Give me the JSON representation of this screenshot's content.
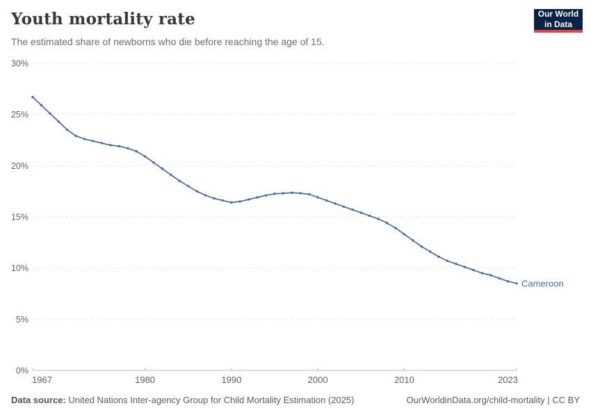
{
  "header": {
    "title": "Youth mortality rate",
    "subtitle": "The estimated share of newborns who die before reaching the age of 15."
  },
  "logo": {
    "line1": "Our World",
    "line2": "in Data",
    "bg_color": "#0a2248",
    "accent_color": "#e8433a"
  },
  "chart_data": {
    "type": "line",
    "title": "Youth mortality rate",
    "entity_label": "Cameroon",
    "line_color": "#4C6A9C",
    "grid": "horizontal-dashed",
    "legend_position": "end-of-line",
    "xlim": [
      1967,
      2023
    ],
    "ylim": [
      0,
      30
    ],
    "x_ticks": [
      1967,
      1980,
      1990,
      2000,
      2010,
      2023
    ],
    "y_ticks": [
      0,
      5,
      10,
      15,
      20,
      25,
      30
    ],
    "y_tick_suffix": "%",
    "x": [
      1967,
      1968,
      1969,
      1970,
      1971,
      1972,
      1973,
      1974,
      1975,
      1976,
      1977,
      1978,
      1979,
      1980,
      1981,
      1982,
      1983,
      1984,
      1985,
      1986,
      1987,
      1988,
      1989,
      1990,
      1991,
      1992,
      1993,
      1994,
      1995,
      1996,
      1997,
      1998,
      1999,
      2000,
      2001,
      2002,
      2003,
      2004,
      2005,
      2006,
      2007,
      2008,
      2009,
      2010,
      2011,
      2012,
      2013,
      2014,
      2015,
      2016,
      2017,
      2018,
      2019,
      2020,
      2021,
      2022,
      2023
    ],
    "y": [
      26.7,
      25.9,
      25.1,
      24.3,
      23.5,
      22.9,
      22.6,
      22.4,
      22.2,
      22.0,
      21.9,
      21.7,
      21.4,
      20.9,
      20.3,
      19.7,
      19.1,
      18.5,
      18.0,
      17.5,
      17.1,
      16.8,
      16.6,
      16.4,
      16.5,
      16.7,
      16.9,
      17.1,
      17.25,
      17.3,
      17.35,
      17.3,
      17.2,
      16.9,
      16.6,
      16.3,
      16.0,
      15.7,
      15.4,
      15.1,
      14.8,
      14.4,
      13.9,
      13.3,
      12.7,
      12.1,
      11.6,
      11.1,
      10.7,
      10.4,
      10.1,
      9.8,
      9.5,
      9.3,
      9.0,
      8.7,
      8.5
    ]
  },
  "footer": {
    "datasource_label": "Data source:",
    "datasource_text": " United Nations Inter-agency Group for Child Mortality Estimation (2025)",
    "right_text": "OurWorldinData.org/child-mortality | CC BY"
  }
}
